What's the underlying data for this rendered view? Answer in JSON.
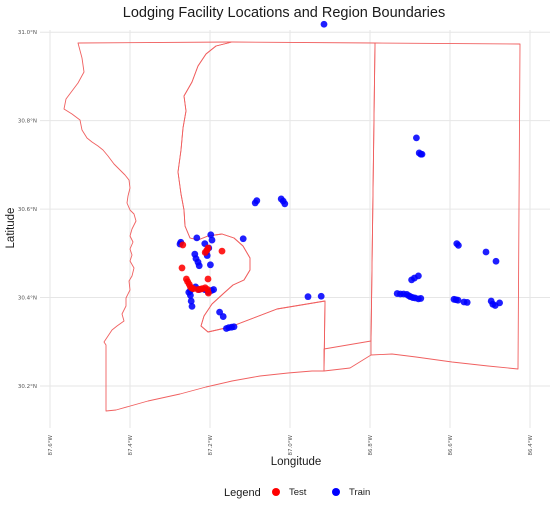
{
  "chart_data": {
    "type": "scatter",
    "title": "Lodging Facility Locations and Region Boundaries",
    "xlabel": "Longitude",
    "ylabel": "Latitude",
    "xlim": [
      -87.67,
      -86.35
    ],
    "ylim": [
      30.105,
      31.005
    ],
    "x_ticks": [
      {
        "value": -87.6,
        "label": "87.6°W"
      },
      {
        "value": -87.4,
        "label": "87.4°W"
      },
      {
        "value": -87.2,
        "label": "87.2°W"
      },
      {
        "value": -87.0,
        "label": "87.0°W"
      },
      {
        "value": -86.8,
        "label": "86.8°W"
      },
      {
        "value": -86.6,
        "label": "86.6°W"
      },
      {
        "value": -86.4,
        "label": "86.4°W"
      }
    ],
    "y_ticks": [
      {
        "value": 30.2,
        "label": "30.2°N"
      },
      {
        "value": 30.4,
        "label": "30.4°N"
      },
      {
        "value": 30.6,
        "label": "30.6°N"
      },
      {
        "value": 30.8,
        "label": "30.8°N"
      },
      {
        "value": 31.0,
        "label": "31.0°N"
      }
    ],
    "grid": true,
    "legend": {
      "title": "Legend",
      "position": "bottom"
    },
    "series": [
      {
        "name": "Test",
        "color": "#ff0000",
        "points": [
          [
            -87.268,
            30.519
          ],
          [
            -87.27,
            30.467
          ],
          [
            -87.259,
            30.442
          ],
          [
            -87.256,
            30.436
          ],
          [
            -87.252,
            30.43
          ],
          [
            -87.249,
            30.424
          ],
          [
            -87.245,
            30.421
          ],
          [
            -87.23,
            30.418
          ],
          [
            -87.224,
            30.419
          ],
          [
            -87.219,
            30.42
          ],
          [
            -87.212,
            30.422
          ],
          [
            -87.206,
            30.418
          ],
          [
            -87.204,
            30.41
          ],
          [
            -87.205,
            30.442
          ],
          [
            -87.212,
            30.502
          ],
          [
            -87.205,
            30.512
          ],
          [
            -87.208,
            30.507
          ],
          [
            -87.17,
            30.505
          ],
          [
            -87.242,
            30.42
          ]
        ]
      },
      {
        "name": "Train",
        "color": "#0000ff",
        "points": [
          [
            -86.915,
            31.018
          ],
          [
            -87.275,
            30.521
          ],
          [
            -87.273,
            30.525
          ],
          [
            -87.233,
            30.535
          ],
          [
            -87.198,
            30.542
          ],
          [
            -87.195,
            30.53
          ],
          [
            -87.213,
            30.522
          ],
          [
            -87.209,
            30.503
          ],
          [
            -87.203,
            30.512
          ],
          [
            -87.207,
            30.495
          ],
          [
            -87.238,
            30.498
          ],
          [
            -87.235,
            30.488
          ],
          [
            -87.23,
            30.48
          ],
          [
            -87.227,
            30.472
          ],
          [
            -87.199,
            30.474
          ],
          [
            -87.249,
            30.416
          ],
          [
            -87.253,
            30.412
          ],
          [
            -87.249,
            30.405
          ],
          [
            -87.247,
            30.392
          ],
          [
            -87.245,
            30.38
          ],
          [
            -87.236,
            30.424
          ],
          [
            -87.227,
            30.418
          ],
          [
            -87.213,
            30.418
          ],
          [
            -87.205,
            30.413
          ],
          [
            -87.196,
            30.416
          ],
          [
            -87.191,
            30.418
          ],
          [
            -87.176,
            30.367
          ],
          [
            -87.167,
            30.357
          ],
          [
            -87.159,
            30.33
          ],
          [
            -87.153,
            30.332
          ],
          [
            -87.146,
            30.333
          ],
          [
            -87.14,
            30.334
          ],
          [
            -87.117,
            30.533
          ],
          [
            -87.087,
            30.614
          ],
          [
            -87.083,
            30.619
          ],
          [
            -87.022,
            30.623
          ],
          [
            -87.017,
            30.618
          ],
          [
            -87.013,
            30.612
          ],
          [
            -86.955,
            30.402
          ],
          [
            -86.922,
            30.403
          ],
          [
            -86.684,
            30.761
          ],
          [
            -86.677,
            30.727
          ],
          [
            -86.673,
            30.724
          ],
          [
            -86.67,
            30.724
          ],
          [
            -86.696,
            30.44
          ],
          [
            -86.689,
            30.444
          ],
          [
            -86.679,
            30.449
          ],
          [
            -86.732,
            30.409
          ],
          [
            -86.724,
            30.408
          ],
          [
            -86.716,
            30.408
          ],
          [
            -86.708,
            30.407
          ],
          [
            -86.703,
            30.404
          ],
          [
            -86.699,
            30.402
          ],
          [
            -86.693,
            30.4
          ],
          [
            -86.687,
            30.399
          ],
          [
            -86.679,
            30.397
          ],
          [
            -86.673,
            30.398
          ],
          [
            -86.583,
            30.522
          ],
          [
            -86.579,
            30.518
          ],
          [
            -86.59,
            30.396
          ],
          [
            -86.585,
            30.395
          ],
          [
            -86.58,
            30.394
          ],
          [
            -86.565,
            30.39
          ],
          [
            -86.557,
            30.389
          ],
          [
            -86.497,
            30.392
          ],
          [
            -86.493,
            30.385
          ],
          [
            -86.487,
            30.382
          ],
          [
            -86.476,
            30.388
          ],
          [
            -86.51,
            30.503
          ],
          [
            -86.485,
            30.482
          ]
        ]
      }
    ]
  }
}
